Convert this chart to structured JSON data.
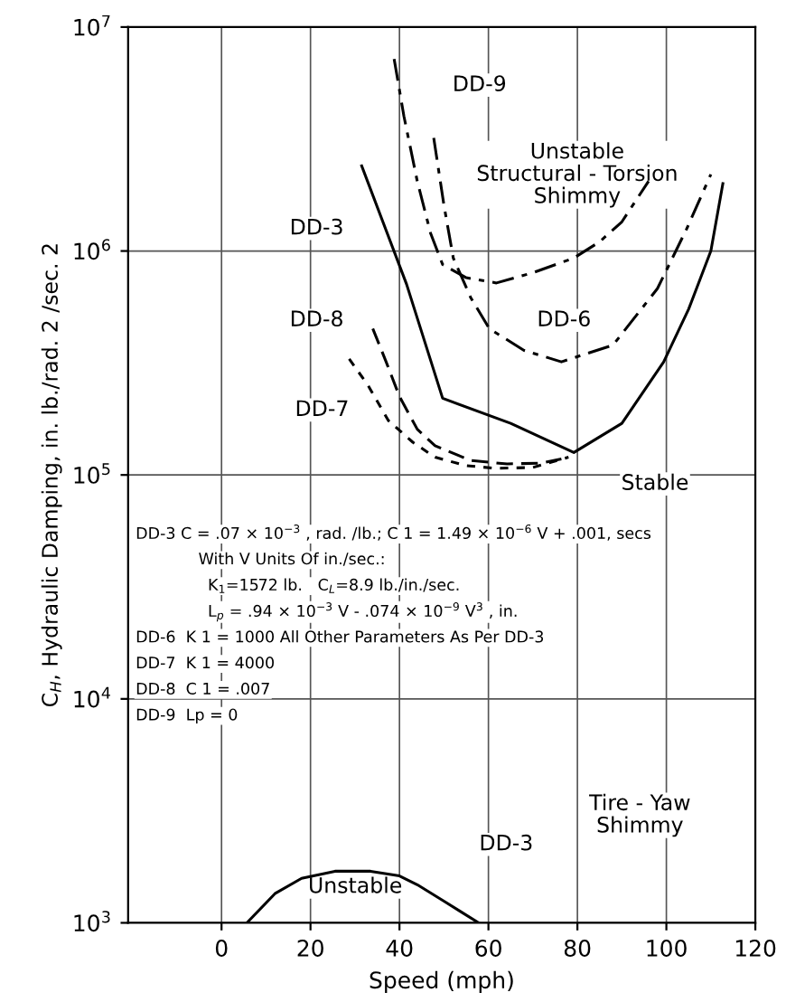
{
  "chart_data": {
    "type": "line",
    "xlabel": "Speed (mph)",
    "ylabel": "C$_{H}$, Hydraulic Damping, in. lb./rad. 2 /sec. 2",
    "log": "y",
    "xlim": [
      -21,
      120
    ],
    "xticks": [
      0,
      20,
      40,
      60,
      80,
      100,
      120
    ],
    "ylim": [
      1000,
      10000000
    ],
    "yticks": [
      {
        "value": 1000,
        "label": "10$^{3}$"
      },
      {
        "value": 10000,
        "label": "10$^{4}$"
      },
      {
        "value": 100000,
        "label": "10$^{5}$"
      },
      {
        "value": 1000000,
        "label": "10$^{6}$"
      },
      {
        "value": 10000000,
        "label": "10$^{7}$"
      }
    ],
    "grid": true,
    "legend": false,
    "series": [
      {
        "name": "DD-3",
        "color": "#000000",
        "line_style": "solid",
        "x": [
          31.5,
          41.6,
          49.7,
          65,
          79.2,
          90,
          99.4,
          105,
          110,
          112.7
        ],
        "values": [
          2400000,
          710000,
          220000,
          170000,
          126000,
          170000,
          320000,
          550000,
          1000000,
          2000000
        ]
      },
      {
        "name": "DD-6",
        "color": "#000000",
        "line_style": "dashdot",
        "x": [
          47.7,
          50,
          52.1,
          56,
          60.2,
          68,
          76.4,
          88,
          98,
          104.6,
          110
        ],
        "values": [
          3200000,
          1600000,
          930000,
          620000,
          450000,
          360000,
          320000,
          380000,
          680000,
          1260000,
          2200000
        ]
      },
      {
        "name": "DD-7",
        "color": "#000000",
        "line_style": "dotted",
        "x": [
          28.7,
          33,
          37.5,
          43,
          48,
          55,
          61.8,
          70,
          78
        ],
        "values": [
          330000,
          250000,
          175000,
          140000,
          120000,
          110000,
          107000,
          108000,
          120000
        ]
      },
      {
        "name": "DD-8",
        "color": "#000000",
        "line_style": "dashed",
        "x": [
          34,
          37,
          40,
          44,
          48,
          56,
          64.2,
          72,
          76.4
        ],
        "values": [
          450000,
          320000,
          224000,
          160000,
          135000,
          116000,
          112000,
          113000,
          118000
        ]
      },
      {
        "name": "DD-9",
        "color": "#000000",
        "line_style": "dashdot",
        "x": [
          38.8,
          41,
          44,
          47,
          49.7,
          55,
          61.8,
          70,
          79.2,
          85,
          90,
          96
        ],
        "values": [
          7200000,
          4000000,
          2050000,
          1200000,
          870000,
          760000,
          720000,
          800000,
          930000,
          1100000,
          1350000,
          2050000
        ]
      },
      {
        "name": "DD-3",
        "color": "#000000",
        "line_style": "solid",
        "x": [
          5.7,
          12,
          18,
          25.5,
          33.5,
          40,
          44,
          50,
          57.8
        ],
        "values": [
          1000,
          1350,
          1580,
          1700,
          1700,
          1620,
          1480,
          1250,
          1000
        ]
      }
    ],
    "annotations": [
      "Unstable\nStructural - Torsion\nShimmy",
      "Stable",
      "Tire - Yaw\nShimmy",
      "Unstable",
      "DD-3 C = .07 × 10$^{−3}$ , rad. /lb.; C 1 = 1.49 × 10$^{−6}$ V + .001, secs",
      "With V Units Of in./sec.:",
      "K$_{1}$=1572 lb.   C$_{L}$=8.9 lb./in./sec.",
      "L$_{p}$ = .94 × 10$^{−3}$ V - .074 × 10$^{−9}$ V$^{3}$ , in.",
      "DD-6  K 1 = 1000 All Other Parameters As Per DD-3",
      "DD-7  K 1 = 4000",
      "DD-8  C 1 = .007",
      "DD-9  Lp = 0"
    ]
  }
}
